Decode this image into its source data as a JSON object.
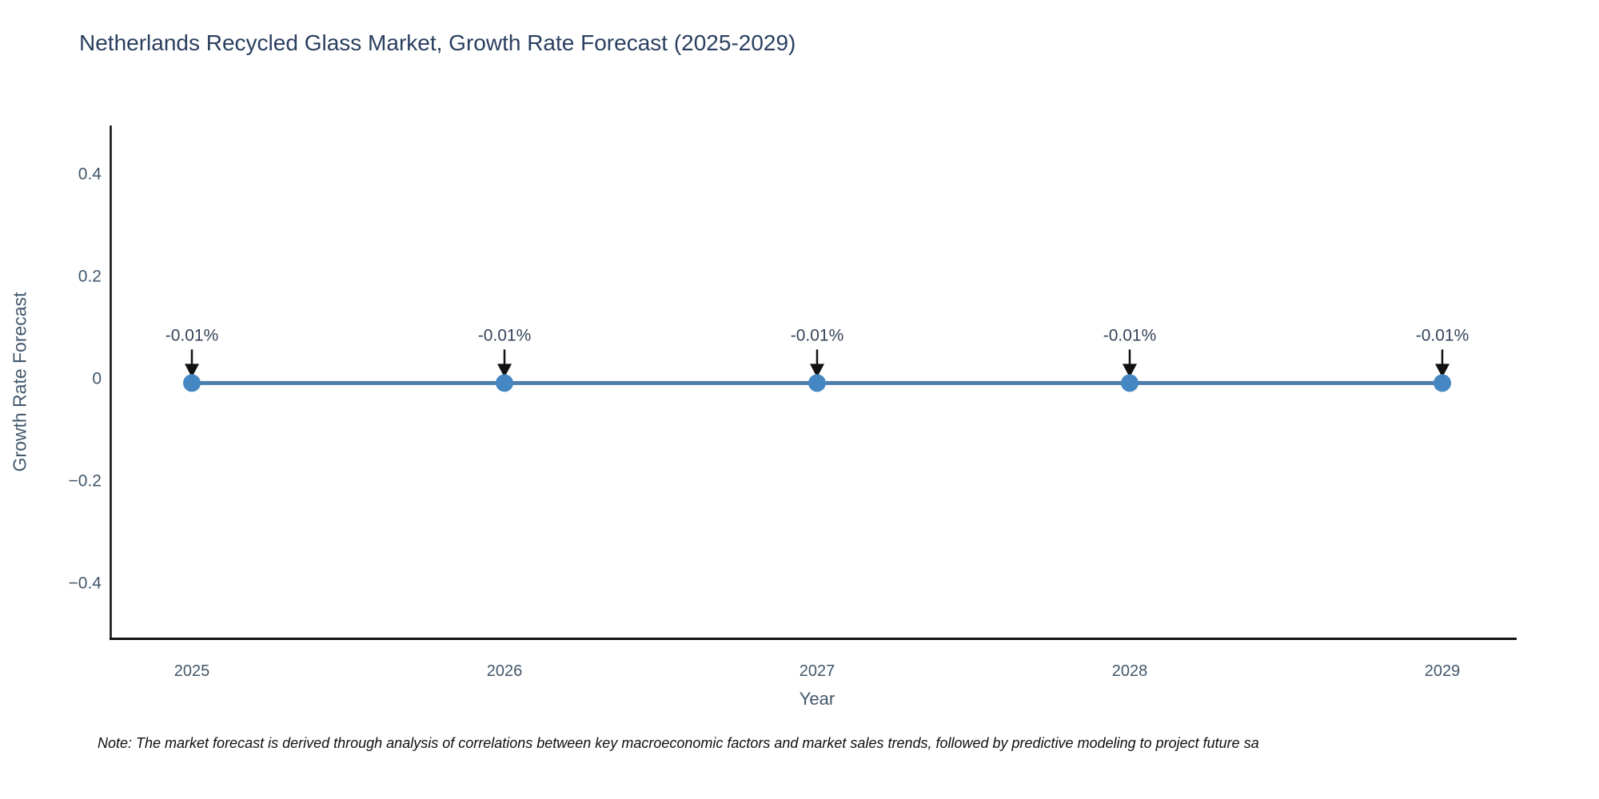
{
  "page": {
    "background": "#ffffff"
  },
  "chart_data": {
    "type": "line",
    "title": "Netherlands Recycled Glass Market, Growth Rate Forecast (2025-2029)",
    "xlabel": "Year",
    "ylabel": "Growth Rate Forecast",
    "x": [
      2025,
      2026,
      2027,
      2028,
      2029
    ],
    "series": [
      {
        "name": "Growth Rate Forecast",
        "values": [
          -0.01,
          -0.01,
          -0.01,
          -0.01,
          -0.01
        ]
      }
    ],
    "point_labels": [
      "-0.01%",
      "-0.01%",
      "-0.01%",
      "-0.01%",
      "-0.01%"
    ],
    "xtick_labels": [
      "2025",
      "2026",
      "2027",
      "2028",
      "2029"
    ],
    "ytick_values": [
      0.4,
      0.2,
      0,
      -0.2,
      -0.4
    ],
    "ytick_labels": [
      "0.4",
      "0.2",
      "0",
      "−0.2",
      "−0.4"
    ],
    "ylim": [
      -0.51,
      0.5
    ],
    "grid": false,
    "legend": "none",
    "colors": {
      "line": "#4d7dab",
      "marker": "#4587c2",
      "axis": "#111111",
      "arrow": "#111111",
      "title_text": "#2a3f5f",
      "tick_text": "#42576b"
    },
    "note": "Note: The market forecast is derived through analysis of correlations between key macroeconomic factors and market sales trends, followed by predictive modeling to project future sa"
  }
}
